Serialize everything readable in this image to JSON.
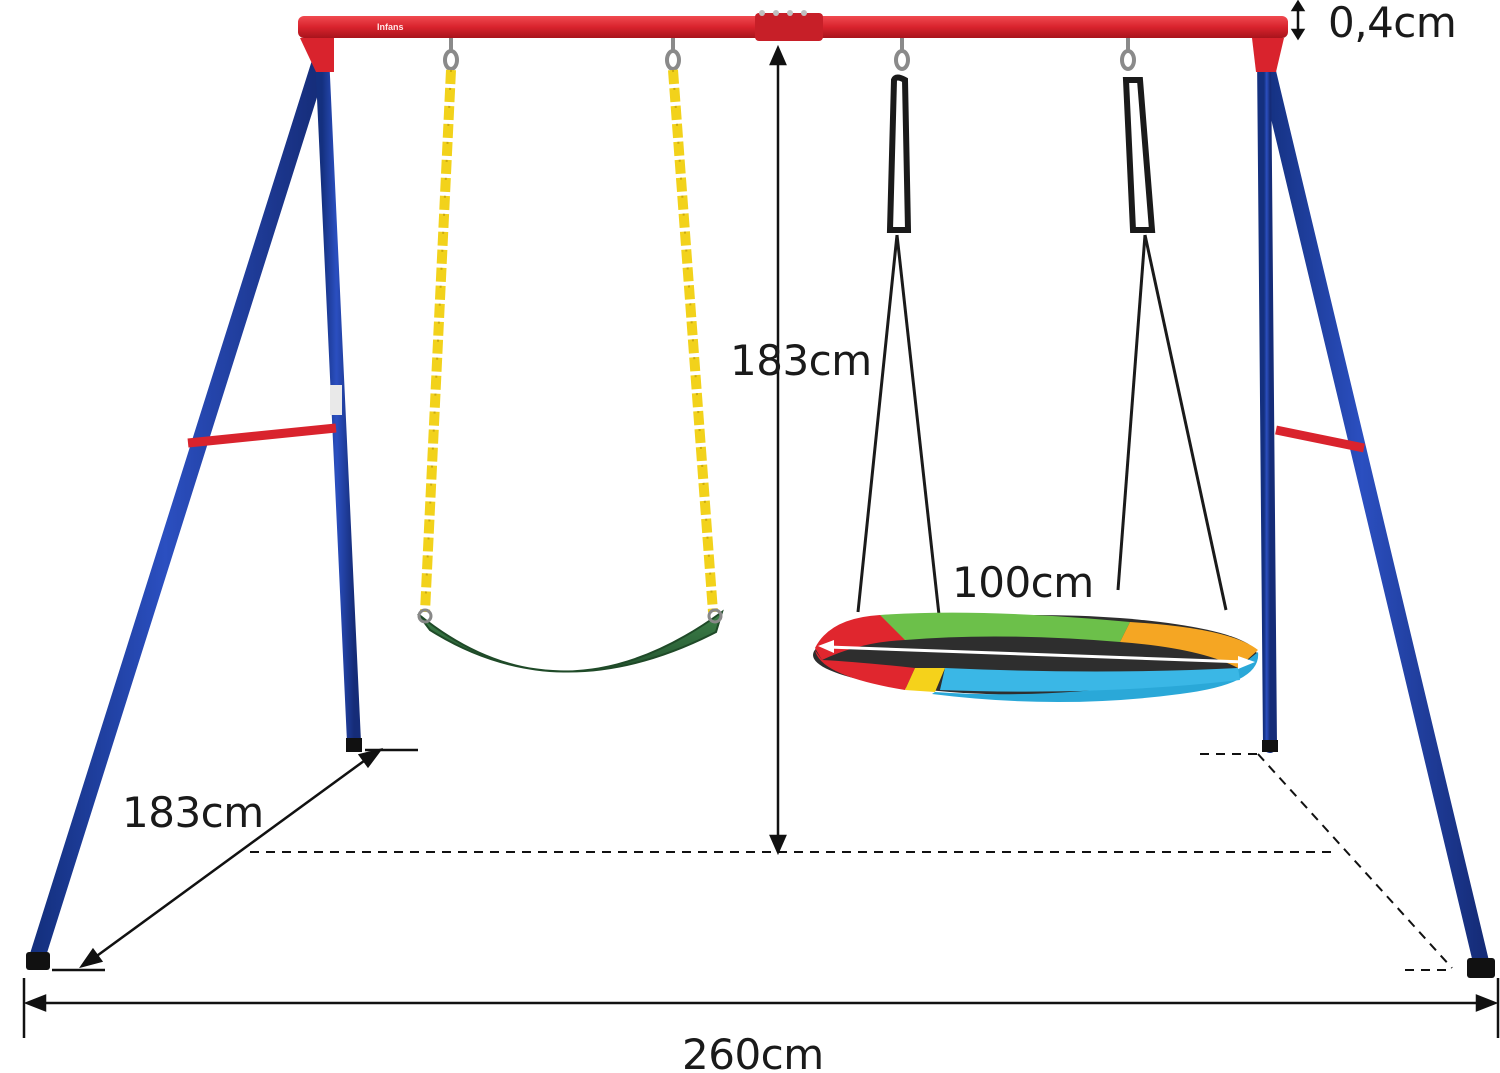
{
  "image": {
    "brand_mark": "Infans",
    "colors": {
      "frame_top": "#d9232d",
      "frame_legs": "#1c3a9e",
      "chain": "#f2d21b",
      "belt_seat": "#2f6b3a",
      "rope": "#1a1a1a",
      "nest_red": "#e0262e",
      "nest_green": "#6cc04a",
      "nest_orange": "#f5a623",
      "nest_blue": "#2aa8d8",
      "nest_yellow": "#f5d21b",
      "dimension_line": "#111111"
    }
  },
  "dimensions": {
    "depth": "183cm",
    "height": "183cm",
    "diameter": "100cm",
    "width": "260cm",
    "tube": "0,4cm"
  }
}
